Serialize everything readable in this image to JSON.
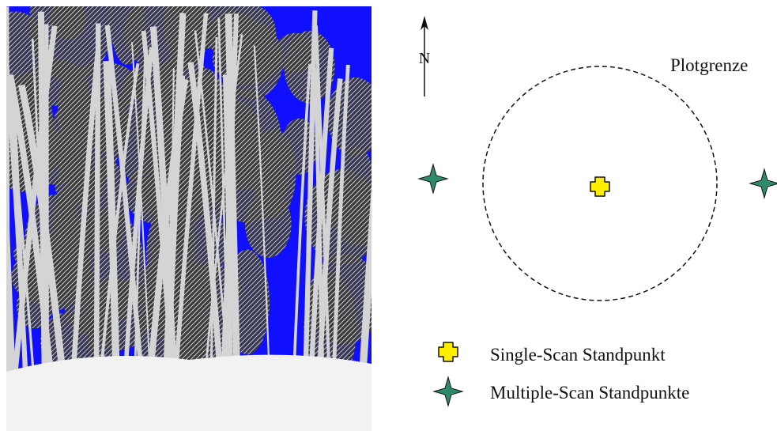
{
  "north_label": "N",
  "plot_label": "Plotgrenze",
  "legend": [
    {
      "label": "Single-Scan Standpunkt"
    },
    {
      "label": "Multiple-Scan Standpunkte"
    }
  ]
}
